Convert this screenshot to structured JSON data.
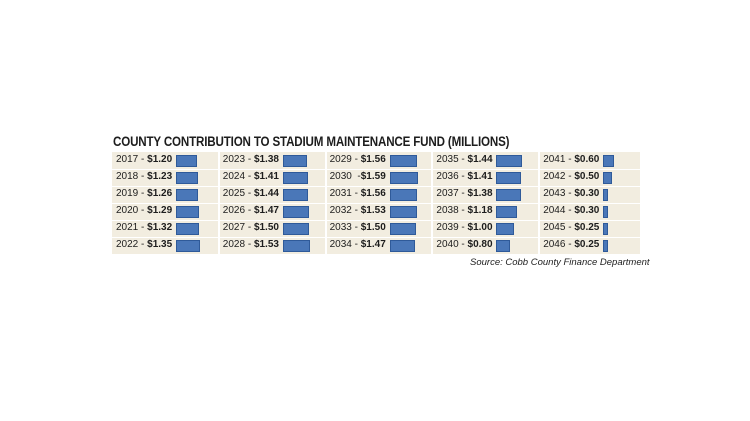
{
  "chart_data": {
    "type": "bar",
    "title": "COUNTY CONTRIBUTION TO STADIUM MAINTENANCE FUND (MILLIONS)",
    "source": "Source: Cobb County Finance Department",
    "entries": [
      {
        "year": "2017",
        "sep": " - ",
        "amount": "$1.20",
        "value": 1.2
      },
      {
        "year": "2018",
        "sep": " - ",
        "amount": "$1.23",
        "value": 1.23
      },
      {
        "year": "2019",
        "sep": " - ",
        "amount": "$1.26",
        "value": 1.26
      },
      {
        "year": "2020",
        "sep": " - ",
        "amount": "$1.29",
        "value": 1.29
      },
      {
        "year": "2021",
        "sep": " - ",
        "amount": "$1.32",
        "value": 1.32
      },
      {
        "year": "2022",
        "sep": " - ",
        "amount": "$1.35",
        "value": 1.35
      },
      {
        "year": "2023",
        "sep": " - ",
        "amount": "$1.38",
        "value": 1.38
      },
      {
        "year": "2024",
        "sep": " - ",
        "amount": "$1.41",
        "value": 1.41
      },
      {
        "year": "2025",
        "sep": " - ",
        "amount": "$1.44",
        "value": 1.44
      },
      {
        "year": "2026",
        "sep": " - ",
        "amount": "$1.47",
        "value": 1.47
      },
      {
        "year": "2027",
        "sep": " - ",
        "amount": "$1.50",
        "value": 1.5
      },
      {
        "year": "2028",
        "sep": " - ",
        "amount": "$1.53",
        "value": 1.53
      },
      {
        "year": "2029",
        "sep": " - ",
        "amount": "$1.56",
        "value": 1.56
      },
      {
        "year": "2030",
        "sep": "  -",
        "amount": "$1.59",
        "value": 1.59
      },
      {
        "year": "2031",
        "sep": " - ",
        "amount": "$1.56",
        "value": 1.56
      },
      {
        "year": "2032",
        "sep": " - ",
        "amount": "$1.53",
        "value": 1.53
      },
      {
        "year": "2033",
        "sep": " - ",
        "amount": "$1.50",
        "value": 1.5
      },
      {
        "year": "2034",
        "sep": " - ",
        "amount": "$1.47",
        "value": 1.47
      },
      {
        "year": "2035",
        "sep": " - ",
        "amount": "$1.44",
        "value": 1.44
      },
      {
        "year": "2036",
        "sep": " - ",
        "amount": "$1.41",
        "value": 1.41
      },
      {
        "year": "2037",
        "sep": " - ",
        "amount": "$1.38",
        "value": 1.38
      },
      {
        "year": "2038",
        "sep": " - ",
        "amount": "$1.18",
        "value": 1.18
      },
      {
        "year": "2039",
        "sep": " - ",
        "amount": "$1.00",
        "value": 1.0
      },
      {
        "year": "2040",
        "sep": " - ",
        "amount": "$0.80",
        "value": 0.8
      },
      {
        "year": "2041",
        "sep": " - ",
        "amount": "$0.60",
        "value": 0.6
      },
      {
        "year": "2042",
        "sep": " - ",
        "amount": "$0.50",
        "value": 0.5
      },
      {
        "year": "2043",
        "sep": " - ",
        "amount": "$0.30",
        "value": 0.3
      },
      {
        "year": "2044",
        "sep": " - ",
        "amount": "$0.30",
        "value": 0.3
      },
      {
        "year": "2045",
        "sep": " - ",
        "amount": "$0.25",
        "value": 0.25
      },
      {
        "year": "2046",
        "sep": " - ",
        "amount": "$0.25",
        "value": 0.25
      }
    ],
    "bar_color": "#4a77b8",
    "panel_color": "#f2ede0"
  }
}
